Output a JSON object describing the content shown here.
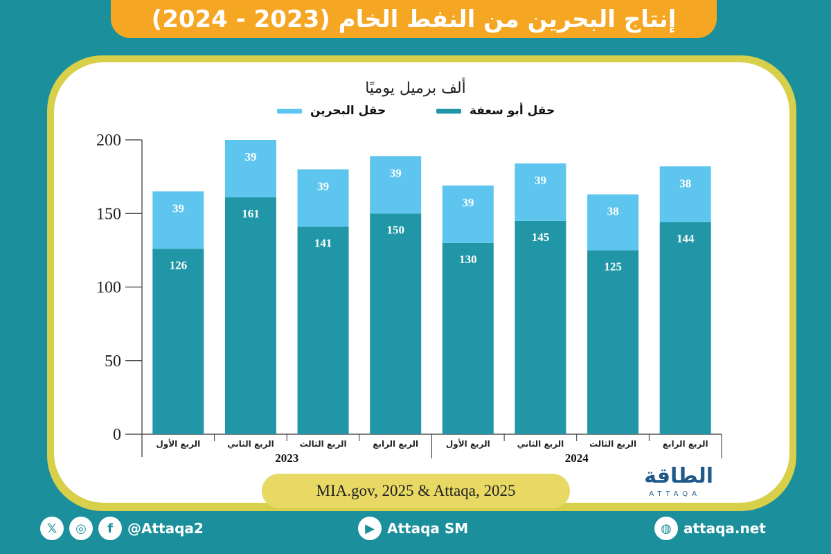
{
  "header": {
    "title": "إنتاج البحرين من النفط الخام (2023 - 2024)"
  },
  "chart_data": {
    "type": "bar",
    "stacked": true,
    "unit_label": "ألف برميل يوميًا",
    "categories": [
      "الربع الأول",
      "الربع الثاني",
      "الربع الثالث",
      "الربع الرابع",
      "الربع الأول",
      "الربع الثاني",
      "الربع الثالث",
      "الربع الرابع"
    ],
    "groups": [
      {
        "label": "2023",
        "count": 4
      },
      {
        "label": "2024",
        "count": 4
      }
    ],
    "series": [
      {
        "name": "حقل أبو سعفة",
        "color": "#2196a6",
        "values": [
          126,
          161,
          141,
          150,
          130,
          145,
          125,
          144
        ]
      },
      {
        "name": "حقل البحرين",
        "color": "#5ec6ee",
        "values": [
          39,
          39,
          39,
          39,
          39,
          39,
          38,
          38
        ]
      }
    ],
    "yticks": [
      "0",
      "50",
      "100",
      "150",
      "200"
    ],
    "ylim": [
      0,
      200
    ],
    "grid": false,
    "legend_position": "top"
  },
  "source": {
    "text": "MIA.gov, 2025 & Attaqa, 2025"
  },
  "logo": {
    "arabic": "الطاقة",
    "latin": "ATTAQA"
  },
  "footer": {
    "social_handle": "@Attaqa2",
    "youtube": "Attaqa SM",
    "website": "attaqa.net"
  }
}
